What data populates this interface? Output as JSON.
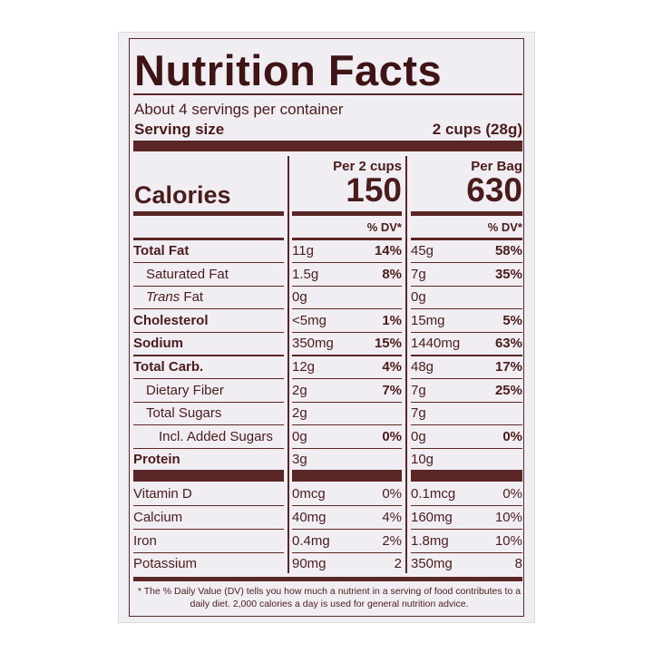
{
  "title": "Nutrition Facts",
  "servings": "About 4 servings per container",
  "serving_size": {
    "label": "Serving size",
    "value": "2 cups (28g)"
  },
  "calories_label": "Calories",
  "columns": [
    {
      "header": "Per 2 cups",
      "calories": "150",
      "dv_header": "% DV*"
    },
    {
      "header": "Per Bag",
      "calories": "630",
      "dv_header": "% DV*"
    }
  ],
  "nutrients": [
    {
      "name": "Total Fat",
      "bold": true,
      "indent": 0,
      "amounts": [
        "11g",
        "45g"
      ],
      "dv": [
        "14%",
        "58%"
      ]
    },
    {
      "name": "Saturated Fat",
      "bold": false,
      "indent": 1,
      "amounts": [
        "1.5g",
        "7g"
      ],
      "dv": [
        "8%",
        "35%"
      ]
    },
    {
      "prefix": "Trans",
      "name": "Fat",
      "bold": false,
      "indent": 1,
      "amounts": [
        "0g",
        "0g"
      ],
      "dv": [
        null,
        null
      ]
    },
    {
      "name": "Cholesterol",
      "bold": true,
      "indent": 0,
      "amounts": [
        "<5mg",
        "15mg"
      ],
      "dv": [
        "1%",
        "5%"
      ]
    },
    {
      "name": "Sodium",
      "bold": true,
      "indent": 0,
      "amounts": [
        "350mg",
        "1440mg"
      ],
      "dv": [
        "15%",
        "63%"
      ]
    },
    {
      "name": "Total Carb.",
      "bold": true,
      "indent": 0,
      "amounts": [
        "12g",
        "48g"
      ],
      "dv": [
        "4%",
        "17%"
      ]
    },
    {
      "name": "Dietary Fiber",
      "bold": false,
      "indent": 1,
      "amounts": [
        "2g",
        "7g"
      ],
      "dv": [
        "7%",
        "25%"
      ]
    },
    {
      "name": "Total Sugars",
      "bold": false,
      "indent": 1,
      "amounts": [
        "2g",
        "7g"
      ],
      "dv": [
        null,
        null
      ]
    },
    {
      "name": "Incl. Added Sugars",
      "bold": false,
      "indent": 2,
      "amounts": [
        "0g",
        "0g"
      ],
      "dv": [
        "0%",
        "0%"
      ]
    },
    {
      "name": "Protein",
      "bold": true,
      "indent": 0,
      "amounts": [
        "3g",
        "10g"
      ],
      "dv": [
        null,
        null
      ]
    }
  ],
  "vitamins": [
    {
      "name": "Vitamin D",
      "amounts": [
        "0mcg",
        "0.1mcg"
      ],
      "dv": [
        "0%",
        "0%"
      ]
    },
    {
      "name": "Calcium",
      "amounts": [
        "40mg",
        "160mg"
      ],
      "dv": [
        "4%",
        "10%"
      ]
    },
    {
      "name": "Iron",
      "amounts": [
        "0.4mg",
        "1.8mg"
      ],
      "dv": [
        "2%",
        "10%"
      ]
    },
    {
      "name": "Potassium",
      "amounts": [
        "90mg",
        "350mg"
      ],
      "dv": [
        "2",
        "8"
      ]
    }
  ],
  "footnote": "* The % Daily Value (DV) tells you how much a nutrient in a serving of food contributes to a daily diet. 2,000 calories a day is used for general nutrition advice."
}
